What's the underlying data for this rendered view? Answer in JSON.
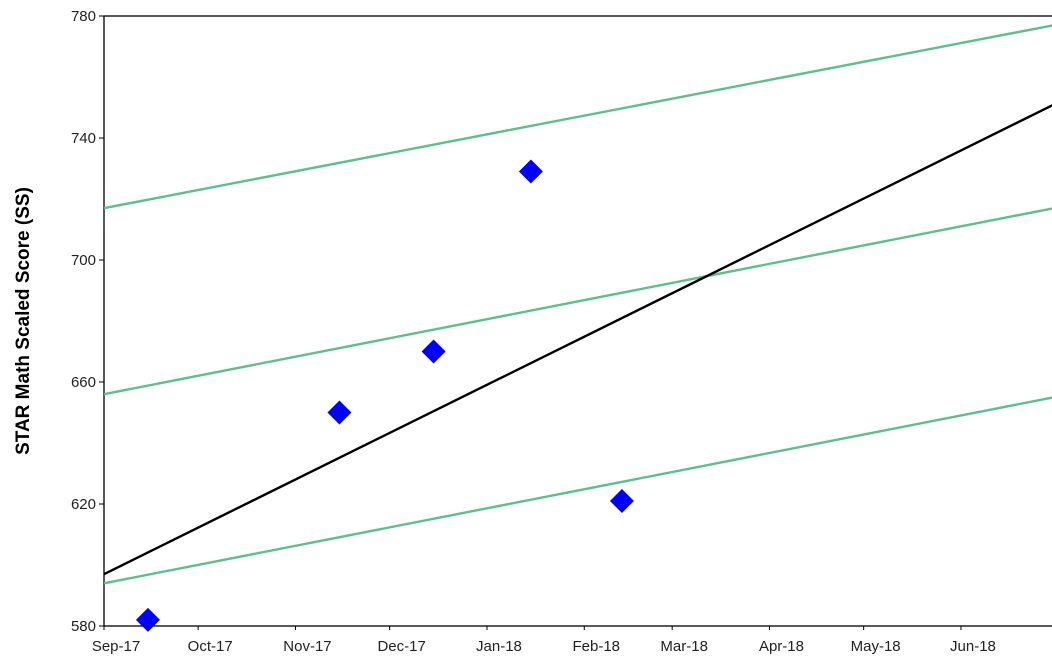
{
  "chart_data": {
    "type": "scatter",
    "title": "",
    "xlabel": "",
    "ylabel": "STAR Math Scaled Score (SS)",
    "x_ticks": [
      "Sep-17",
      "Oct-17",
      "Nov-17",
      "Dec-17",
      "Jan-18",
      "Feb-18",
      "Mar-18",
      "Apr-18",
      "May-18",
      "Jun-18"
    ],
    "xlim": [
      "2017-09-01",
      "2018-06-30"
    ],
    "y_ticks": [
      580,
      620,
      660,
      700,
      740,
      780
    ],
    "ylim": [
      580,
      780
    ],
    "grid": false,
    "points": [
      {
        "x": "2017-09-15",
        "y": 582
      },
      {
        "x": "2017-11-15",
        "y": 650
      },
      {
        "x": "2017-12-15",
        "y": 670
      },
      {
        "x": "2018-01-15",
        "y": 729
      },
      {
        "x": "2018-02-13",
        "y": 621
      }
    ],
    "point_color": "#0000ff",
    "lines": [
      {
        "color": "#5cc08e",
        "x": [
          "2017-09-01",
          "2018-06-30"
        ],
        "y": [
          717,
          777
        ]
      },
      {
        "color": "#5cc08e",
        "x": [
          "2017-09-01",
          "2018-06-30"
        ],
        "y": [
          656,
          717
        ]
      },
      {
        "color": "#5cc08e",
        "x": [
          "2017-09-01",
          "2018-06-30"
        ],
        "y": [
          594,
          655
        ]
      },
      {
        "color": "#000000",
        "x": [
          "2017-09-01",
          "2018-06-30"
        ],
        "y": [
          597,
          751
        ]
      }
    ]
  }
}
